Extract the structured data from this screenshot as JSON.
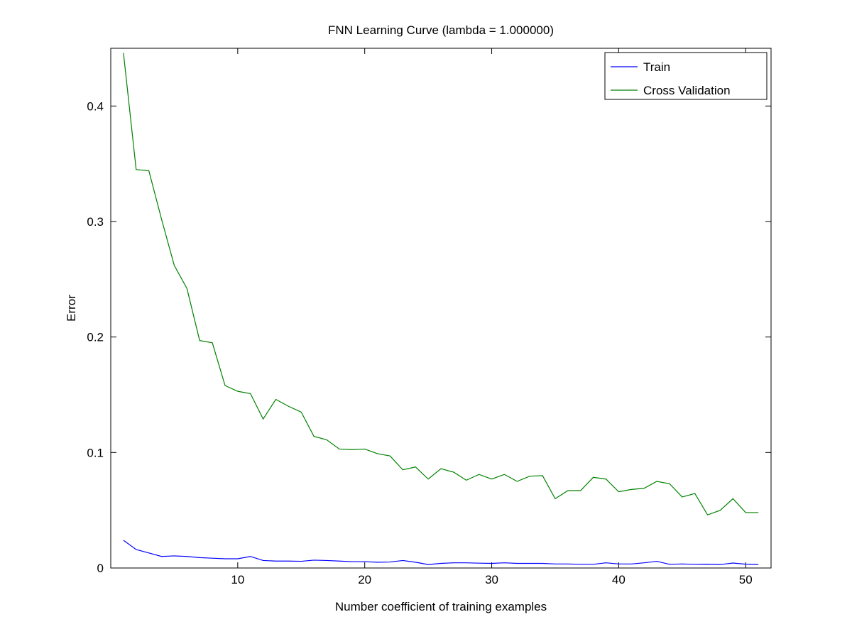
{
  "chart_data": {
    "type": "line",
    "title": "FNN Learning Curve (lambda = 1.000000)",
    "xlabel": "Number coefficient of training examples",
    "ylabel": "Error",
    "xlim": [
      0,
      52
    ],
    "ylim": [
      0,
      0.45
    ],
    "xticks": [
      10,
      20,
      30,
      40,
      50
    ],
    "yticks": [
      0,
      0.1,
      0.2,
      0.3,
      0.4
    ],
    "xtick_labels": [
      "10",
      "20",
      "30",
      "40",
      "50"
    ],
    "ytick_labels": [
      "0",
      "0.1",
      "0.2",
      "0.3",
      "0.4"
    ],
    "grid": false,
    "legend_position": "top-right",
    "x": [
      1,
      2,
      3,
      4,
      5,
      6,
      7,
      8,
      9,
      10,
      11,
      12,
      13,
      14,
      15,
      16,
      17,
      18,
      19,
      20,
      21,
      22,
      23,
      24,
      25,
      26,
      27,
      28,
      29,
      30,
      31,
      32,
      33,
      34,
      35,
      36,
      37,
      38,
      39,
      40,
      41,
      42,
      43,
      44,
      45,
      46,
      47,
      48,
      49,
      50,
      51
    ],
    "series": [
      {
        "name": "Train",
        "color": "#0000ff",
        "values": [
          0.024,
          0.016,
          0.013,
          0.01,
          0.0105,
          0.01,
          0.009,
          0.0085,
          0.008,
          0.008,
          0.01,
          0.0065,
          0.006,
          0.006,
          0.0058,
          0.0068,
          0.0065,
          0.006,
          0.0055,
          0.0055,
          0.005,
          0.0052,
          0.0065,
          0.005,
          0.003,
          0.004,
          0.0045,
          0.0045,
          0.0042,
          0.004,
          0.0045,
          0.004,
          0.004,
          0.004,
          0.0035,
          0.0035,
          0.0032,
          0.0032,
          0.0045,
          0.0035,
          0.0035,
          0.0045,
          0.0058,
          0.0032,
          0.0035,
          0.0032,
          0.0033,
          0.003,
          0.0043,
          0.0033,
          0.003
        ]
      },
      {
        "name": "Cross Validation",
        "color": "#008000",
        "values": [
          0.446,
          0.345,
          0.344,
          0.302,
          0.262,
          0.242,
          0.197,
          0.195,
          0.158,
          0.153,
          0.151,
          0.129,
          0.146,
          0.14,
          0.135,
          0.114,
          0.111,
          0.103,
          0.1025,
          0.103,
          0.099,
          0.097,
          0.085,
          0.0875,
          0.077,
          0.086,
          0.083,
          0.076,
          0.081,
          0.077,
          0.081,
          0.075,
          0.0795,
          0.08,
          0.06,
          0.067,
          0.067,
          0.0785,
          0.077,
          0.066,
          0.068,
          0.069,
          0.075,
          0.073,
          0.0615,
          0.0645,
          0.046,
          0.05,
          0.06,
          0.048,
          0.048
        ]
      }
    ]
  }
}
